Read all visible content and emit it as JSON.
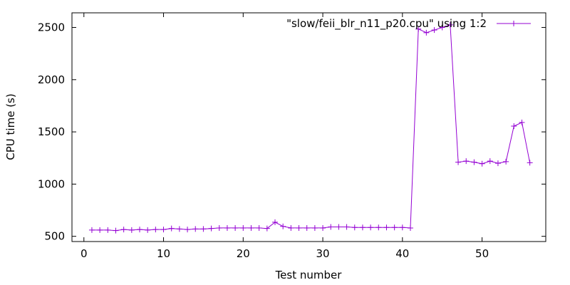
{
  "chart_data": {
    "type": "line",
    "xlabel": "Test number",
    "ylabel": "CPU time (s)",
    "xlim": [
      -1.5,
      58
    ],
    "ylim": [
      450,
      2640
    ],
    "xticks": [
      0,
      10,
      20,
      30,
      40,
      50
    ],
    "yticks": [
      500,
      1000,
      1500,
      2000,
      2500
    ],
    "grid": false,
    "legend_position": "top-right",
    "series": [
      {
        "name": "\"slow/feii_blr_n11_p20.cpu\" using 1:2",
        "color": "#9400d3",
        "marker": "plus",
        "x": [
          1,
          2,
          3,
          4,
          5,
          6,
          7,
          8,
          9,
          10,
          11,
          12,
          13,
          14,
          15,
          16,
          17,
          18,
          19,
          20,
          21,
          22,
          23,
          24,
          25,
          26,
          27,
          28,
          29,
          30,
          31,
          32,
          33,
          34,
          35,
          36,
          37,
          38,
          39,
          40,
          41,
          42,
          43,
          44,
          45,
          46,
          47,
          48,
          49,
          50,
          51,
          52,
          53,
          54,
          55,
          56
        ],
        "y": [
          560,
          560,
          560,
          555,
          565,
          560,
          565,
          560,
          565,
          565,
          575,
          570,
          565,
          570,
          570,
          575,
          580,
          580,
          580,
          580,
          580,
          580,
          575,
          635,
          595,
          580,
          580,
          580,
          580,
          580,
          590,
          590,
          590,
          585,
          585,
          585,
          585,
          585,
          585,
          585,
          580,
          2485,
          2450,
          2475,
          2500,
          2525,
          1210,
          1220,
          1210,
          1195,
          1220,
          1200,
          1215,
          1555,
          1590,
          1205
        ]
      }
    ]
  }
}
